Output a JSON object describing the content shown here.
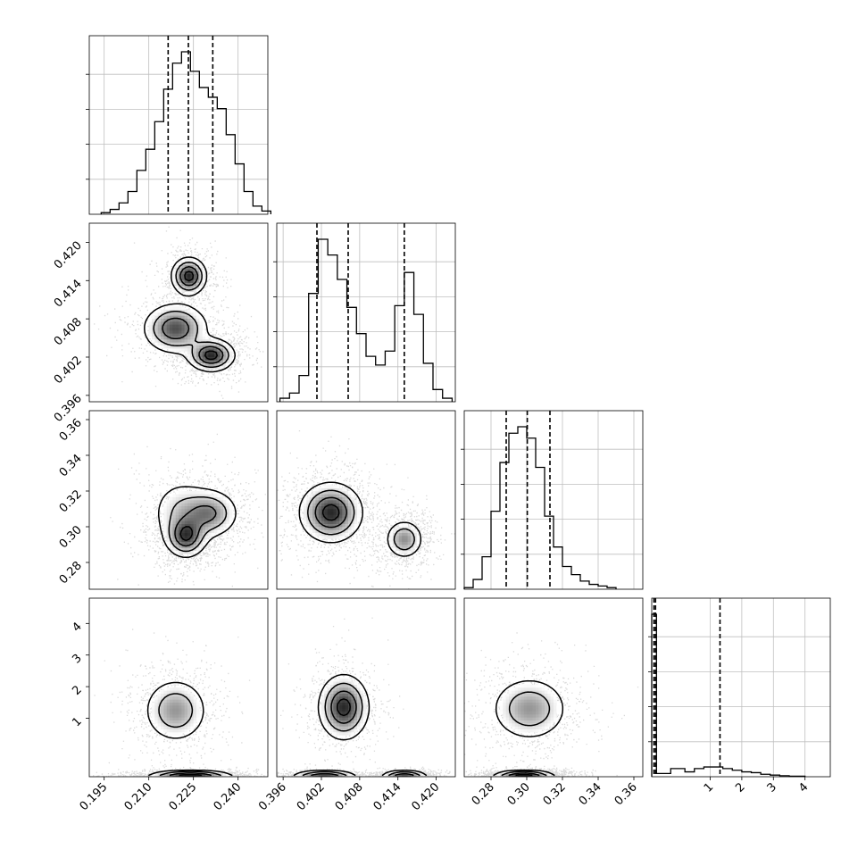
{
  "chart_data": {
    "type": "corner",
    "n_params": 4,
    "grid": true,
    "contour_color": "#000000",
    "scatter_color": "#555555",
    "axes": [
      {
        "range": [
          0.19,
          0.25
        ],
        "ticks": [
          0.195,
          0.21,
          0.225,
          0.24
        ],
        "tick_labels": [
          "0.195",
          "0.210",
          "0.225",
          "0.240"
        ]
      },
      {
        "range": [
          0.395,
          0.423
        ],
        "ticks": [
          0.396,
          0.402,
          0.408,
          0.414,
          0.42
        ],
        "tick_labels": [
          "0.396",
          "0.402",
          "0.408",
          "0.414",
          "0.420"
        ]
      },
      {
        "range": [
          0.265,
          0.365
        ],
        "ticks": [
          0.28,
          0.3,
          0.32,
          0.34,
          0.36
        ],
        "tick_labels": [
          "0.28",
          "0.30",
          "0.32",
          "0.34",
          "0.36"
        ]
      },
      {
        "range": [
          -0.85,
          4.8
        ],
        "ticks": [
          1,
          2,
          3,
          4
        ],
        "tick_labels": [
          "1",
          "2",
          "3",
          "4"
        ]
      }
    ],
    "histograms": [
      {
        "param": 0,
        "bin_edges": [
          0.194,
          0.197,
          0.2,
          0.203,
          0.206,
          0.209,
          0.212,
          0.215,
          0.218,
          0.221,
          0.224,
          0.227,
          0.23,
          0.233,
          0.236,
          0.239,
          0.242,
          0.245,
          0.248,
          0.251
        ],
        "counts": [
          0.01,
          0.03,
          0.07,
          0.14,
          0.27,
          0.4,
          0.57,
          0.77,
          0.93,
          1.0,
          0.88,
          0.78,
          0.72,
          0.65,
          0.49,
          0.31,
          0.14,
          0.05,
          0.02
        ],
        "quantiles": [
          0.2165,
          0.2233,
          0.2315
        ]
      },
      {
        "param": 1,
        "bin_edges": [
          0.3955,
          0.397,
          0.3985,
          0.4,
          0.4015,
          0.403,
          0.4045,
          0.406,
          0.4075,
          0.409,
          0.4105,
          0.412,
          0.4135,
          0.415,
          0.4165,
          0.418,
          0.4195,
          0.421,
          0.4225
        ],
        "counts": [
          0.02,
          0.05,
          0.15,
          0.62,
          0.93,
          0.84,
          0.7,
          0.54,
          0.39,
          0.26,
          0.21,
          0.29,
          0.55,
          0.74,
          0.5,
          0.22,
          0.07,
          0.02
        ],
        "quantiles": [
          0.4013,
          0.4062,
          0.415
        ]
      },
      {
        "param": 2,
        "bin_edges": [
          0.265,
          0.27,
          0.275,
          0.28,
          0.285,
          0.29,
          0.295,
          0.3,
          0.305,
          0.31,
          0.315,
          0.32,
          0.325,
          0.33,
          0.335,
          0.34,
          0.345,
          0.35
        ],
        "counts": [
          0.01,
          0.06,
          0.2,
          0.48,
          0.78,
          0.96,
          1.0,
          0.93,
          0.75,
          0.45,
          0.26,
          0.14,
          0.09,
          0.05,
          0.03,
          0.02,
          0.01
        ],
        "quantiles": [
          0.2885,
          0.3003,
          0.313
        ]
      },
      {
        "param": 3,
        "bin_edges": [
          -0.85,
          -0.7,
          -0.55,
          -0.4,
          -0.25,
          0.2,
          0.5,
          0.8,
          1.1,
          1.4,
          1.7,
          2.0,
          2.3,
          2.6,
          2.9,
          3.2,
          3.5,
          4.0
        ],
        "counts": [
          1.0,
          0.02,
          0.02,
          0.02,
          0.05,
          0.03,
          0.05,
          0.06,
          0.06,
          0.05,
          0.04,
          0.03,
          0.025,
          0.015,
          0.01,
          0.006,
          0.003
        ],
        "quantiles": [
          -0.78,
          -0.73,
          1.31
        ]
      }
    ],
    "pairs": [
      {
        "x": 0,
        "y": 1,
        "modes": [
          [
            0.2235,
            0.4147,
            0.003,
            0.0015,
            0.0,
            0.35
          ],
          [
            0.219,
            0.4065,
            0.0055,
            0.002,
            -0.4,
            0.3
          ],
          [
            0.231,
            0.4023,
            0.004,
            0.0013,
            0.0,
            0.35
          ]
        ]
      },
      {
        "x": 0,
        "y": 2,
        "modes": [
          [
            0.2225,
            0.2945,
            0.0035,
            0.006,
            0.0,
            0.45
          ],
          [
            0.2305,
            0.3075,
            0.005,
            0.007,
            0.0,
            0.35
          ],
          [
            0.221,
            0.308,
            0.0055,
            0.01,
            0.0,
            0.2
          ]
        ]
      },
      {
        "x": 0,
        "y": 3,
        "modes": [
          [
            0.224,
            -0.78,
            0.007,
            0.055,
            0.0,
            0.65
          ],
          [
            0.219,
            1.25,
            0.0055,
            0.52,
            0.0,
            0.35
          ]
        ]
      },
      {
        "x": 1,
        "y": 2,
        "modes": [
          [
            0.4035,
            0.308,
            0.0025,
            0.0085,
            0.0,
            0.62
          ],
          [
            0.415,
            0.293,
            0.0015,
            0.0055,
            0.0,
            0.38
          ]
        ]
      },
      {
        "x": 1,
        "y": 3,
        "modes": [
          [
            0.4025,
            -0.78,
            0.0025,
            0.055,
            0.0,
            0.33
          ],
          [
            0.415,
            -0.78,
            0.0018,
            0.055,
            0.0,
            0.32
          ],
          [
            0.4055,
            1.35,
            0.002,
            0.52,
            0.0,
            0.35
          ]
        ]
      },
      {
        "x": 2,
        "y": 3,
        "modes": [
          [
            0.2985,
            -0.78,
            0.0085,
            0.055,
            0.0,
            0.65
          ],
          [
            0.3015,
            1.3,
            0.011,
            0.52,
            0.0,
            0.35
          ]
        ]
      }
    ]
  }
}
